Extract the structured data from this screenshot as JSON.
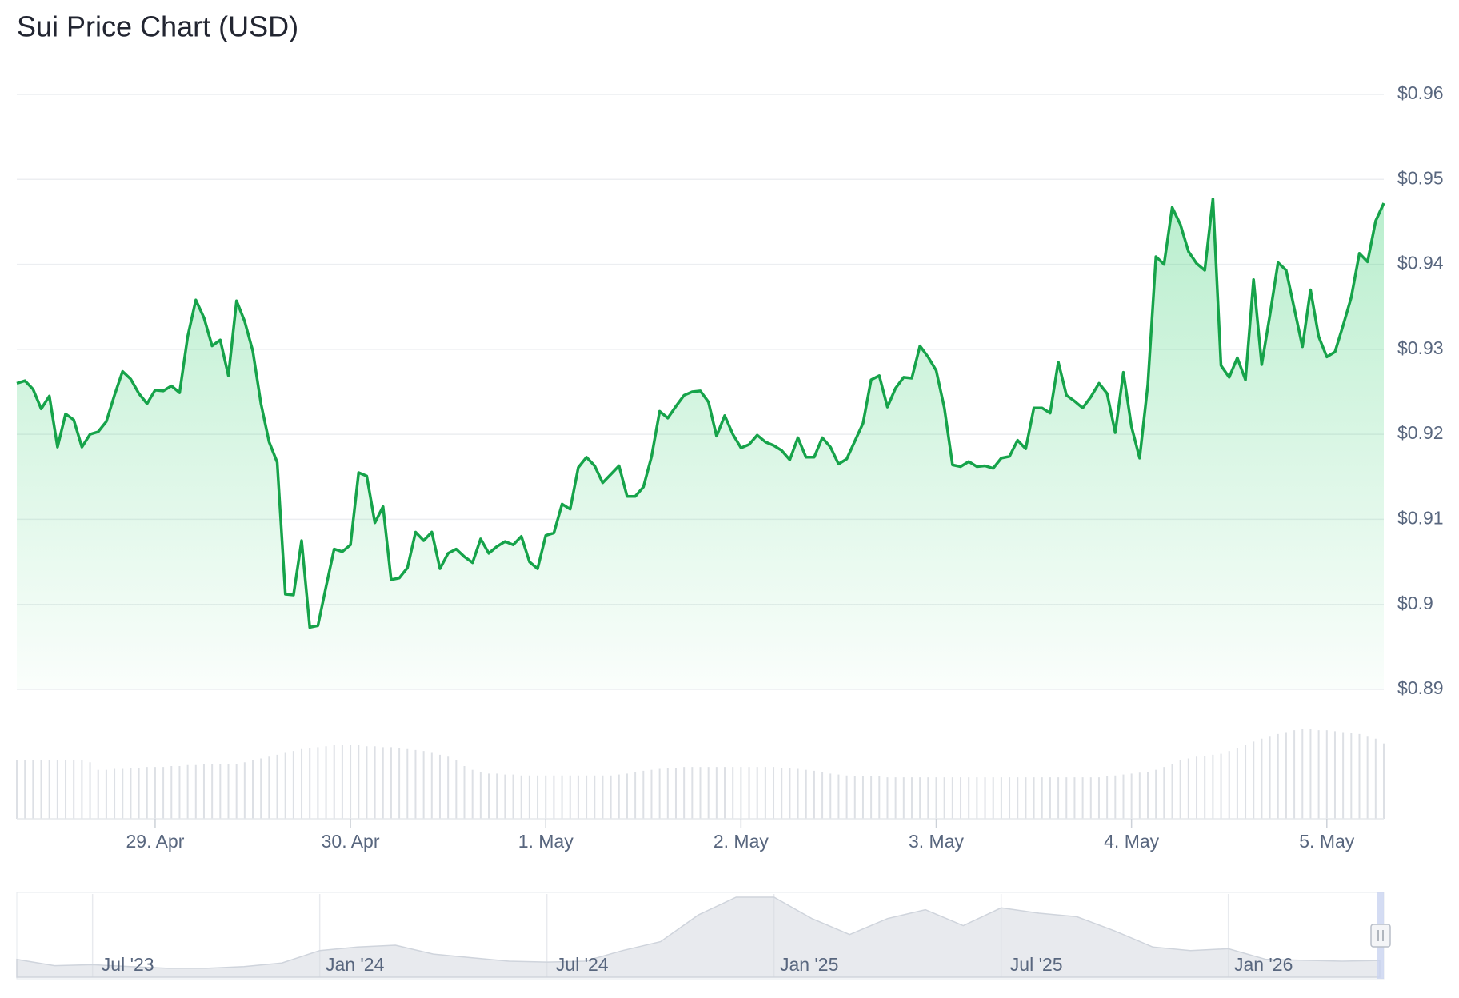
{
  "chart_data": [
    {
      "type": "line",
      "title": "Sui Price Chart (USD)",
      "color": "#16a34a",
      "x": [
        7,
        8,
        9,
        10,
        11,
        12,
        13,
        14,
        15,
        16,
        17,
        18,
        19,
        20,
        21,
        22,
        23,
        24,
        25,
        26,
        27,
        28,
        29,
        30,
        31,
        32,
        33,
        34,
        35,
        36,
        37,
        38,
        39,
        40,
        41,
        42,
        43,
        44,
        45,
        46,
        47,
        48,
        49,
        50,
        51,
        52,
        53,
        54,
        55,
        56,
        57,
        58,
        59,
        60,
        61,
        62,
        63,
        64,
        65,
        66,
        67,
        68,
        69,
        70,
        71,
        72,
        73,
        74,
        75,
        76,
        77,
        78,
        79,
        80,
        81,
        82,
        83,
        84,
        85,
        86,
        87,
        88,
        89,
        90,
        91,
        92,
        93,
        94,
        95,
        96,
        97,
        98,
        99,
        100,
        101,
        102,
        103,
        104,
        105,
        106,
        107,
        108,
        109,
        110,
        111,
        112,
        113,
        114,
        115,
        116,
        117,
        118,
        119,
        120,
        121,
        122,
        123,
        124,
        125,
        126,
        127,
        128,
        129,
        130,
        131,
        132,
        133,
        134,
        135,
        136,
        137,
        138,
        139,
        140,
        141,
        142,
        143,
        144,
        145,
        146,
        147,
        148,
        149,
        150,
        151,
        152,
        153,
        154,
        155,
        156,
        157,
        158,
        159,
        160,
        161,
        162,
        163,
        164,
        165,
        166,
        167,
        168,
        169,
        170,
        171,
        172,
        173,
        174,
        175
      ],
      "values": [
        0.926,
        0.9263,
        0.9253,
        0.923,
        0.9245,
        0.9185,
        0.9224,
        0.9217,
        0.9185,
        0.92,
        0.9203,
        0.9215,
        0.9246,
        0.9274,
        0.9265,
        0.9248,
        0.9236,
        0.9252,
        0.9251,
        0.9257,
        0.9249,
        0.9315,
        0.9358,
        0.9337,
        0.9304,
        0.9311,
        0.9269,
        0.9357,
        0.9333,
        0.9298,
        0.9236,
        0.9191,
        0.9167,
        0.9012,
        0.9011,
        0.9075,
        0.8973,
        0.8975,
        0.9021,
        0.9065,
        0.9062,
        0.907,
        0.9155,
        0.9151,
        0.9096,
        0.9115,
        0.9029,
        0.9031,
        0.9043,
        0.9085,
        0.9075,
        0.9085,
        0.9042,
        0.906,
        0.9065,
        0.9056,
        0.9049,
        0.9077,
        0.906,
        0.9068,
        0.9074,
        0.907,
        0.908,
        0.905,
        0.9042,
        0.9081,
        0.9084,
        0.9118,
        0.9112,
        0.9161,
        0.9173,
        0.9163,
        0.9143,
        0.9153,
        0.9163,
        0.9127,
        0.9127,
        0.9138,
        0.9174,
        0.9227,
        0.9219,
        0.9233,
        0.9246,
        0.925,
        0.9251,
        0.9238,
        0.9198,
        0.9222,
        0.92,
        0.9184,
        0.9188,
        0.9199,
        0.9191,
        0.9187,
        0.9181,
        0.917,
        0.9196,
        0.9173,
        0.9173,
        0.9196,
        0.9185,
        0.9165,
        0.9171,
        0.9192,
        0.9213,
        0.9264,
        0.9269,
        0.9232,
        0.9254,
        0.9267,
        0.9266,
        0.9304,
        0.9291,
        0.9275,
        0.9231,
        0.9164,
        0.9162,
        0.9168,
        0.9162,
        0.9163,
        0.916,
        0.9172,
        0.9174,
        0.9193,
        0.9183,
        0.9231,
        0.9231,
        0.9225,
        0.9285,
        0.9246,
        0.9239,
        0.9231,
        0.9244,
        0.926,
        0.9248,
        0.9202,
        0.9273,
        0.9209,
        0.9172,
        0.9258,
        0.9409,
        0.94,
        0.9467,
        0.9447,
        0.9415,
        0.9401,
        0.9393,
        0.9477,
        0.9281,
        0.9267,
        0.929,
        0.9264,
        0.9382,
        0.9282,
        0.934,
        0.9402,
        0.9393,
        0.9348,
        0.9303,
        0.937,
        0.9315,
        0.9291,
        0.9297,
        0.9328,
        0.9361,
        0.9413,
        0.9403,
        0.9451,
        0.9472
      ],
      "volume": [
        62,
        62,
        62,
        62,
        62,
        62,
        62,
        62,
        62,
        60,
        52,
        52,
        53,
        53,
        54,
        54,
        55,
        55,
        55,
        56,
        56,
        57,
        57,
        58,
        58,
        58,
        58,
        58,
        60,
        62,
        64,
        66,
        68,
        70,
        72,
        74,
        75,
        76,
        77,
        78,
        78,
        78,
        78,
        77,
        77,
        76,
        76,
        75,
        74,
        73,
        72,
        70,
        68,
        66,
        62,
        56,
        52,
        50,
        48,
        48,
        47,
        47,
        46,
        46,
        46,
        46,
        46,
        46,
        46,
        46,
        46,
        46,
        46,
        46,
        47,
        48,
        50,
        51,
        52,
        53,
        54,
        54,
        55,
        55,
        55,
        55,
        55,
        55,
        55,
        55,
        55,
        55,
        55,
        55,
        54,
        54,
        53,
        52,
        51,
        50,
        48,
        47,
        46,
        45,
        45,
        45,
        45,
        44,
        44,
        44,
        44,
        44,
        44,
        44,
        44,
        44,
        44,
        44,
        44,
        44,
        44,
        44,
        44,
        44,
        44,
        44,
        44,
        44,
        44,
        44,
        44,
        44,
        44,
        44,
        45,
        46,
        47,
        48,
        49,
        50,
        52,
        55,
        58,
        62,
        64,
        66,
        67,
        68,
        69,
        72,
        75,
        78,
        82,
        85,
        88,
        90,
        92,
        94,
        95,
        95,
        94,
        94,
        93,
        92,
        91,
        90,
        88,
        85,
        80
      ],
      "xlim": [
        7,
        175
      ],
      "xticks": [
        {
          "value": 24,
          "label": "29. Apr"
        },
        {
          "value": 48,
          "label": "30. Apr"
        },
        {
          "value": 72,
          "label": "1. May"
        },
        {
          "value": 96,
          "label": "2. May"
        },
        {
          "value": 120,
          "label": "3. May"
        },
        {
          "value": 144,
          "label": "4. May"
        },
        {
          "value": 168,
          "label": "5. May"
        }
      ],
      "ylim": [
        0.89,
        0.96
      ],
      "yticks": [
        {
          "value": 0.96,
          "label": "$0.96"
        },
        {
          "value": 0.95,
          "label": "$0.95"
        },
        {
          "value": 0.94,
          "label": "$0.94"
        },
        {
          "value": 0.93,
          "label": "$0.93"
        },
        {
          "value": 0.92,
          "label": "$0.92"
        },
        {
          "value": 0.91,
          "label": "$0.91"
        },
        {
          "value": 0.9,
          "label": "$0.9"
        },
        {
          "value": 0.89,
          "label": "$0.89"
        }
      ],
      "grid": true
    },
    {
      "type": "area",
      "color": "#d5d9e0",
      "categories": [
        null,
        null,
        "Jul '23",
        null,
        null,
        null,
        null,
        null,
        "Jan '24",
        null,
        null,
        null,
        null,
        null,
        "Jul '24",
        null,
        null,
        null,
        null,
        null,
        "Jan '25",
        null,
        null,
        null,
        null,
        null,
        "Jul '25",
        null,
        null,
        null,
        null,
        null,
        "Jan '26",
        null,
        null,
        null,
        null
      ],
      "values": [
        1.0,
        0.65,
        0.7,
        0.6,
        0.5,
        0.5,
        0.6,
        0.8,
        1.5,
        1.7,
        1.8,
        1.3,
        1.1,
        0.9,
        0.85,
        0.9,
        1.5,
        2.0,
        3.5,
        4.5,
        4.5,
        3.3,
        2.4,
        3.3,
        3.8,
        2.9,
        3.9,
        3.6,
        3.4,
        2.6,
        1.7,
        1.5,
        1.6,
        1.0,
        0.95,
        0.9,
        0.94
      ]
    }
  ]
}
